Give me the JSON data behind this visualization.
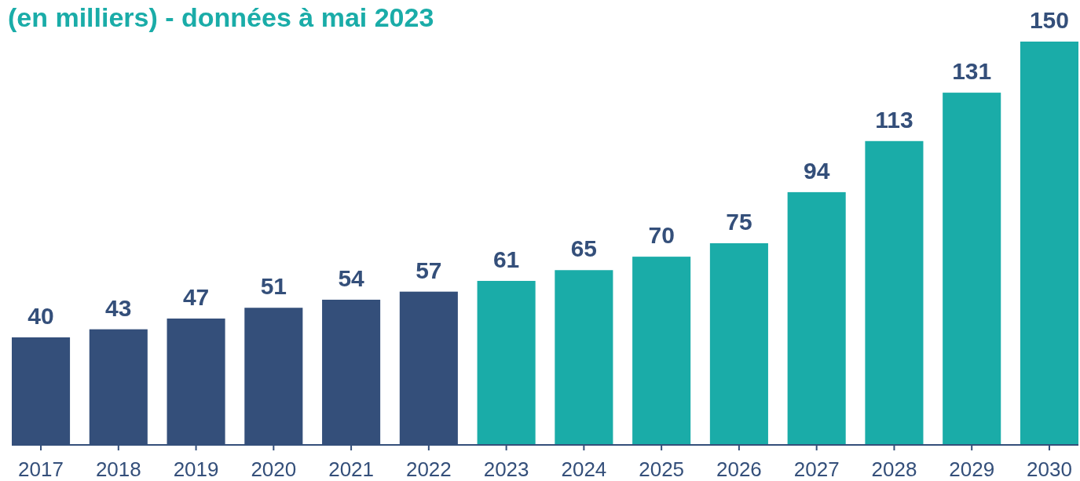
{
  "chart_data": {
    "type": "bar",
    "title": "(en milliers) - données à mai 2023",
    "categories": [
      "2017",
      "2018",
      "2019",
      "2020",
      "2021",
      "2022",
      "2023",
      "2024",
      "2025",
      "2026",
      "2027",
      "2028",
      "2029",
      "2030"
    ],
    "values": [
      40,
      43,
      47,
      51,
      54,
      57,
      61,
      65,
      70,
      75,
      94,
      113,
      131,
      150
    ],
    "colors": [
      "#344f7a",
      "#344f7a",
      "#344f7a",
      "#344f7a",
      "#344f7a",
      "#344f7a",
      "#1aaca8",
      "#1aaca8",
      "#1aaca8",
      "#1aaca8",
      "#1aaca8",
      "#1aaca8",
      "#1aaca8",
      "#1aaca8"
    ],
    "data_labels": true
  }
}
